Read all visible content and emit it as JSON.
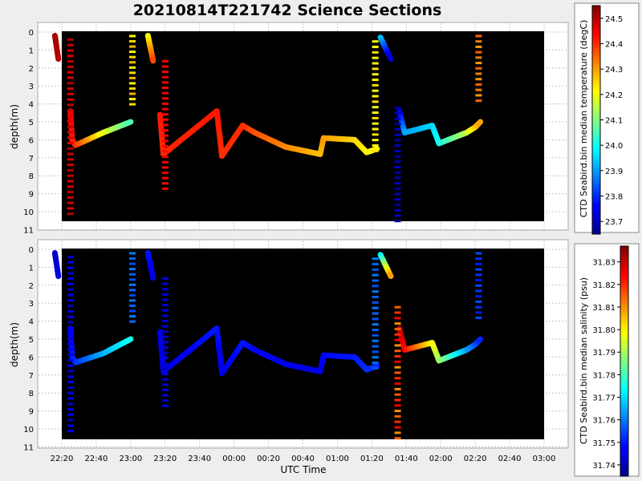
{
  "title": "20210814T221742 Science Sections",
  "xlabel": "UTC Time",
  "x_ticks": [
    "22:20",
    "22:40",
    "23:00",
    "23:20",
    "23:40",
    "00:00",
    "00:20",
    "00:40",
    "01:00",
    "01:20",
    "01:40",
    "02:00",
    "02:20",
    "02:40",
    "03:00"
  ],
  "chart_data": [
    {
      "type": "scatter",
      "name": "temperature-section",
      "ylabel": "depth(m)",
      "y_ticks": [
        "0",
        "1",
        "2",
        "3",
        "4",
        "5",
        "6",
        "7",
        "8",
        "9",
        "10",
        "11"
      ],
      "ylim": [
        11,
        0
      ],
      "xlim": [
        "22:20",
        "03:00"
      ],
      "background": "#000000",
      "grid": true,
      "colorbar": {
        "label": "CTD Seabird.bin median temperature (degC)",
        "ticks": [
          "23.7",
          "23.8",
          "23.9",
          "24.0",
          "24.1",
          "24.2",
          "24.3",
          "24.4",
          "24.5"
        ],
        "range": [
          23.65,
          24.55
        ]
      },
      "segments": [
        {
          "points": [
            [
              -4,
              0.2,
              24.52
            ],
            [
              -2,
              1.5,
              24.5
            ]
          ]
        },
        {
          "points": [
            [
              5,
              4.4,
              24.45
            ],
            [
              6,
              6.0,
              24.42
            ],
            [
              8,
              6.3,
              24.4
            ],
            [
              24,
              5.6,
              24.2
            ],
            [
              40,
              5.0,
              24.05
            ]
          ]
        },
        {
          "points": [
            [
              50,
              0.2,
              24.2
            ],
            [
              53,
              1.6,
              24.38
            ]
          ]
        },
        {
          "points": [
            [
              57,
              4.6,
              24.42
            ],
            [
              59,
              6.8,
              24.4
            ],
            [
              90,
              4.4,
              24.42
            ],
            [
              93,
              6.9,
              24.4
            ],
            [
              105,
              5.2,
              24.4
            ],
            [
              112,
              5.6,
              24.37
            ],
            [
              130,
              6.4,
              24.32
            ],
            [
              150,
              6.8,
              24.27
            ],
            [
              152,
              5.9,
              24.3
            ],
            [
              170,
              6.0,
              24.25
            ],
            [
              177,
              6.7,
              24.22
            ],
            [
              183,
              6.5,
              24.22
            ]
          ]
        },
        {
          "points": [
            [
              185,
              0.3,
              23.95
            ],
            [
              191,
              1.5,
              23.7
            ]
          ]
        },
        {
          "points": [
            [
              196,
              4.4,
              23.73
            ],
            [
              199,
              5.6,
              23.9
            ],
            [
              215,
              5.2,
              23.95
            ],
            [
              219,
              6.2,
              24.0
            ],
            [
              235,
              5.6,
              24.15
            ],
            [
              240,
              5.3,
              24.25
            ],
            [
              243,
              5.0,
              24.3
            ]
          ]
        }
      ],
      "columns": [
        {
          "x": 5,
          "from": 0.4,
          "to": 10.1,
          "values": [
            24.5,
            24.48,
            24.47,
            24.46
          ]
        },
        {
          "x": 41,
          "from": 0.2,
          "to": 4.0,
          "values": [
            24.22,
            24.25,
            24.28
          ]
        },
        {
          "x": 60,
          "from": 1.6,
          "to": 8.7,
          "values": [
            24.45,
            24.44,
            24.43
          ]
        },
        {
          "x": 182,
          "from": 0.5,
          "to": 6.6,
          "values": [
            24.2,
            24.22,
            24.24
          ]
        },
        {
          "x": 195,
          "from": 4.2,
          "to": 10.5,
          "values": [
            23.68,
            23.7,
            23.72
          ]
        },
        {
          "x": 242,
          "from": 0.2,
          "to": 3.8,
          "values": [
            24.35,
            24.33,
            24.3
          ]
        }
      ]
    },
    {
      "type": "scatter",
      "name": "salinity-section",
      "ylabel": "depth(m)",
      "y_ticks": [
        "0",
        "1",
        "2",
        "3",
        "4",
        "5",
        "6",
        "7",
        "8",
        "9",
        "10",
        "11"
      ],
      "ylim": [
        11,
        0
      ],
      "xlim": [
        "22:20",
        "03:00"
      ],
      "background": "#000000",
      "grid": true,
      "colorbar": {
        "label": "CTD Seabird.bin median salinity (psu)",
        "ticks": [
          "31.74",
          "31.75",
          "31.76",
          "31.77",
          "31.78",
          "31.79",
          "31.80",
          "31.81",
          "31.82",
          "31.83"
        ],
        "range": [
          31.735,
          31.837
        ]
      },
      "segments": [
        {
          "points": [
            [
              -4,
              0.2,
              31.742
            ],
            [
              -2,
              1.5,
              31.745
            ]
          ]
        },
        {
          "points": [
            [
              5,
              4.4,
              31.747
            ],
            [
              6,
              6.0,
              31.75
            ],
            [
              8,
              6.3,
              31.752
            ],
            [
              24,
              5.8,
              31.765
            ],
            [
              40,
              5.0,
              31.775
            ]
          ]
        },
        {
          "points": [
            [
              50,
              0.2,
              31.75
            ],
            [
              53,
              1.6,
              31.745
            ]
          ]
        },
        {
          "points": [
            [
              57,
              4.6,
              31.745
            ],
            [
              59,
              6.8,
              31.745
            ],
            [
              90,
              4.4,
              31.75
            ],
            [
              93,
              6.9,
              31.745
            ],
            [
              105,
              5.2,
              31.75
            ],
            [
              112,
              5.6,
              31.748
            ],
            [
              130,
              6.4,
              31.746
            ],
            [
              150,
              6.8,
              31.745
            ],
            [
              152,
              5.9,
              31.748
            ],
            [
              170,
              6.0,
              31.75
            ],
            [
              177,
              6.7,
              31.752
            ],
            [
              183,
              6.5,
              31.752
            ]
          ]
        },
        {
          "points": [
            [
              185,
              0.3,
              31.77
            ],
            [
              191,
              1.5,
              31.81
            ]
          ]
        },
        {
          "points": [
            [
              196,
              4.4,
              31.832
            ],
            [
              199,
              5.6,
              31.825
            ],
            [
              215,
              5.2,
              31.8
            ],
            [
              219,
              6.2,
              31.79
            ],
            [
              235,
              5.6,
              31.765
            ],
            [
              240,
              5.3,
              31.757
            ],
            [
              243,
              5.0,
              31.75
            ]
          ]
        }
      ],
      "columns": [
        {
          "x": 5,
          "from": 0.4,
          "to": 10.1,
          "values": [
            31.742,
            31.745,
            31.747
          ]
        },
        {
          "x": 41,
          "from": 0.2,
          "to": 4.0,
          "values": [
            31.76,
            31.758,
            31.755
          ]
        },
        {
          "x": 60,
          "from": 1.6,
          "to": 8.7,
          "values": [
            31.745,
            31.743,
            31.742
          ]
        },
        {
          "x": 182,
          "from": 0.5,
          "to": 6.6,
          "values": [
            31.76,
            31.758,
            31.756
          ]
        },
        {
          "x": 195,
          "from": 3.2,
          "to": 10.5,
          "values": [
            31.815,
            31.82,
            31.825,
            31.81
          ]
        },
        {
          "x": 242,
          "from": 0.2,
          "to": 3.8,
          "values": [
            31.755,
            31.753,
            31.75
          ]
        }
      ]
    }
  ]
}
